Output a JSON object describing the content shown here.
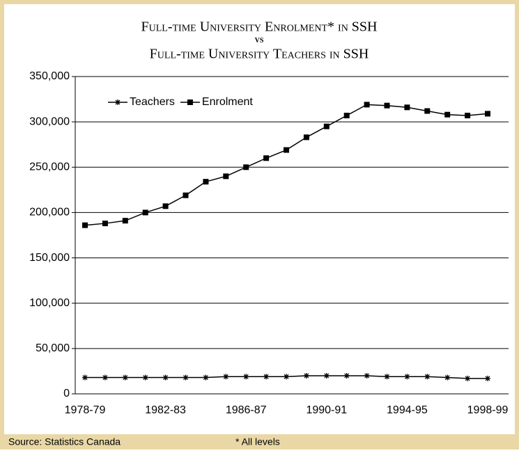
{
  "chart_data": {
    "type": "line",
    "title": [
      "Full-time University Enrolment* in SSH",
      "vs",
      "Full-time University Teachers in SSH"
    ],
    "categories": [
      "1978-79",
      null,
      null,
      null,
      "1982-83",
      null,
      null,
      null,
      "1986-87",
      null,
      null,
      null,
      "1990-91",
      null,
      null,
      null,
      "1994-95",
      null,
      null,
      null,
      "1998-99"
    ],
    "series": [
      {
        "name": "Teachers",
        "color": "#000000",
        "marker": "asterisk",
        "values": [
          18000,
          18000,
          18000,
          18000,
          18000,
          18000,
          18000,
          19000,
          19000,
          19000,
          19000,
          20000,
          20000,
          20000,
          20000,
          19000,
          19000,
          19000,
          18000,
          17000,
          17000
        ]
      },
      {
        "name": "Enrolment",
        "color": "#000000",
        "marker": "square",
        "values": [
          186000,
          188000,
          191000,
          200000,
          207000,
          219000,
          234000,
          240000,
          250000,
          260000,
          269000,
          283000,
          295000,
          307000,
          319000,
          318000,
          316000,
          312000,
          308000,
          307000,
          309000
        ]
      }
    ],
    "ylim": [
      0,
      350000
    ],
    "yticks": [
      0,
      {
        "value": 50000,
        "label": "50,000"
      },
      {
        "value": 100000,
        "label": "100,000"
      },
      {
        "value": 150000,
        "label": "150,000"
      },
      {
        "value": 200000,
        "label": "200,000"
      },
      {
        "value": 250000,
        "label": "250,000"
      },
      {
        "value": 300000,
        "label": "300,000"
      },
      {
        "value": 350000,
        "label": "350,000"
      }
    ],
    "grid": true,
    "legend": "top-left",
    "source": "Source: Statistics Canada",
    "footnote": "* All levels"
  }
}
